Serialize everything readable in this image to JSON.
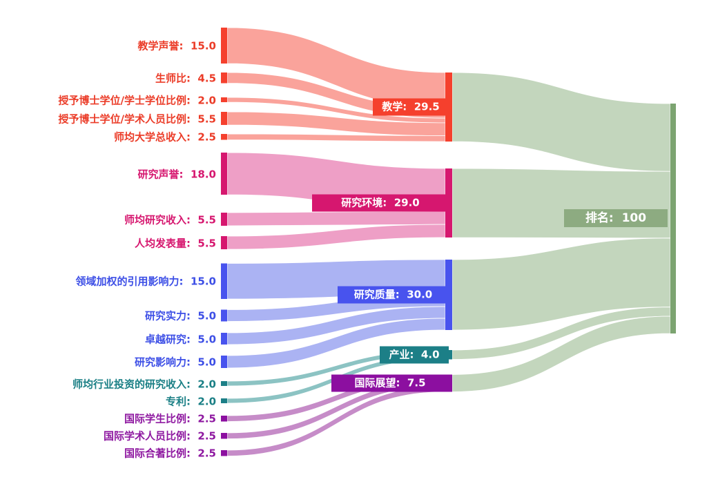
{
  "chart_data": {
    "type": "sankey",
    "title": "",
    "orientation": "left-to-right",
    "total_value": 100,
    "grid": false,
    "legend": false,
    "groups": [
      {
        "id": "teaching",
        "mid_label": "教学",
        "mid_value": 29.5,
        "mid_display": "教学:  29.5",
        "node_color": "#F5402D",
        "flow_color": "#FAA39B",
        "text_color": "#EB3C28"
      },
      {
        "id": "research-environment",
        "mid_label": "研究环境",
        "mid_value": 29.0,
        "mid_display": "研究环境:  29.0",
        "node_color": "#D6176F",
        "flow_color": "#EE9FC6",
        "text_color": "#D6176F"
      },
      {
        "id": "research-quality",
        "mid_label": "研究质量",
        "mid_value": 30.0,
        "mid_display": "研究质量:  30.0",
        "node_color": "#4853EE",
        "flow_color": "#ABB3F3",
        "text_color": "#3D4FE6"
      },
      {
        "id": "industry",
        "mid_label": "产业",
        "mid_value": 4.0,
        "mid_display": "产业:  4.0",
        "node_color": "#1C7F87",
        "flow_color": "#8CC3C3",
        "text_color": "#1A7F85"
      },
      {
        "id": "international-outlook",
        "mid_label": "国际展望",
        "mid_value": 7.5,
        "mid_display": "国际展望:  7.5",
        "node_color": "#8C0FA0",
        "flow_color": "#C68CC8",
        "text_color": "#8E18A0"
      }
    ],
    "left_nodes": [
      {
        "label": "教学声誉",
        "value": 15.0,
        "display": "教学声誉:  15.0",
        "group": 0
      },
      {
        "label": "生师比",
        "value": 4.5,
        "display": "生师比:  4.5",
        "group": 0
      },
      {
        "label": "授予博士学位/学士学位比例",
        "value": 2.0,
        "display": "授予博士学位/学士学位比例:  2.0",
        "group": 0
      },
      {
        "label": "授予博士学位/学术人员比例",
        "value": 5.5,
        "display": "授予博士学位/学术人员比例:  5.5",
        "group": 0
      },
      {
        "label": "师均大学总收入",
        "value": 2.5,
        "display": "师均大学总收入:  2.5",
        "group": 0
      },
      {
        "label": "研究声誉",
        "value": 18.0,
        "display": "研究声誉:  18.0",
        "group": 1
      },
      {
        "label": "师均研究收入",
        "value": 5.5,
        "display": "师均研究收入:  5.5",
        "group": 1
      },
      {
        "label": "人均发表量",
        "value": 5.5,
        "display": "人均发表量:  5.5",
        "group": 1
      },
      {
        "label": "领域加权的引用影响力",
        "value": 15.0,
        "display": "领域加权的引用影响力:  15.0",
        "group": 2
      },
      {
        "label": "研究实力",
        "value": 5.0,
        "display": "研究实力:  5.0",
        "group": 2
      },
      {
        "label": "卓越研究",
        "value": 5.0,
        "display": "卓越研究:  5.0",
        "group": 2
      },
      {
        "label": "研究影响力",
        "value": 5.0,
        "display": "研究影响力:  5.0",
        "group": 2
      },
      {
        "label": "师均行业投资的研究收入",
        "value": 2.0,
        "display": "师均行业投资的研究收入:  2.0",
        "group": 3
      },
      {
        "label": "专利",
        "value": 2.0,
        "display": "专利:  2.0",
        "group": 3
      },
      {
        "label": "国际学生比例",
        "value": 2.5,
        "display": "国际学生比例:  2.5",
        "group": 4
      },
      {
        "label": "国际学术人员比例",
        "value": 2.5,
        "display": "国际学术人员比例:  2.5",
        "group": 4
      },
      {
        "label": "国际合著比例",
        "value": 2.5,
        "display": "国际合著比例:  2.5",
        "group": 4
      }
    ],
    "right_node": {
      "label": "排名",
      "value": 100,
      "display": "排名:  100",
      "node_color": "#7CA471",
      "flow_color": "#C3D6BD",
      "box_color": "#8DAB81"
    },
    "links": [
      {
        "source": "教学声誉",
        "target": "教学",
        "value": 15.0
      },
      {
        "source": "生师比",
        "target": "教学",
        "value": 4.5
      },
      {
        "source": "授予博士学位/学士学位比例",
        "target": "教学",
        "value": 2.0
      },
      {
        "source": "授予博士学位/学术人员比例",
        "target": "教学",
        "value": 5.5
      },
      {
        "source": "师均大学总收入",
        "target": "教学",
        "value": 2.5
      },
      {
        "source": "研究声誉",
        "target": "研究环境",
        "value": 18.0
      },
      {
        "source": "师均研究收入",
        "target": "研究环境",
        "value": 5.5
      },
      {
        "source": "人均发表量",
        "target": "研究环境",
        "value": 5.5
      },
      {
        "source": "领域加权的引用影响力",
        "target": "研究质量",
        "value": 15.0
      },
      {
        "source": "研究实力",
        "target": "研究质量",
        "value": 5.0
      },
      {
        "source": "卓越研究",
        "target": "研究质量",
        "value": 5.0
      },
      {
        "source": "研究影响力",
        "target": "研究质量",
        "value": 5.0
      },
      {
        "source": "师均行业投资的研究收入",
        "target": "产业",
        "value": 2.0
      },
      {
        "source": "专利",
        "target": "产业",
        "value": 2.0
      },
      {
        "source": "国际学生比例",
        "target": "国际展望",
        "value": 2.5
      },
      {
        "source": "国际学术人员比例",
        "target": "国际展望",
        "value": 2.5
      },
      {
        "source": "国际合著比例",
        "target": "国际展望",
        "value": 2.5
      },
      {
        "source": "教学",
        "target": "排名",
        "value": 29.5
      },
      {
        "source": "研究环境",
        "target": "排名",
        "value": 29.0
      },
      {
        "source": "研究质量",
        "target": "排名",
        "value": 30.0
      },
      {
        "source": "产业",
        "target": "排名",
        "value": 4.0
      },
      {
        "source": "国际展望",
        "target": "排名",
        "value": 7.5
      }
    ]
  }
}
